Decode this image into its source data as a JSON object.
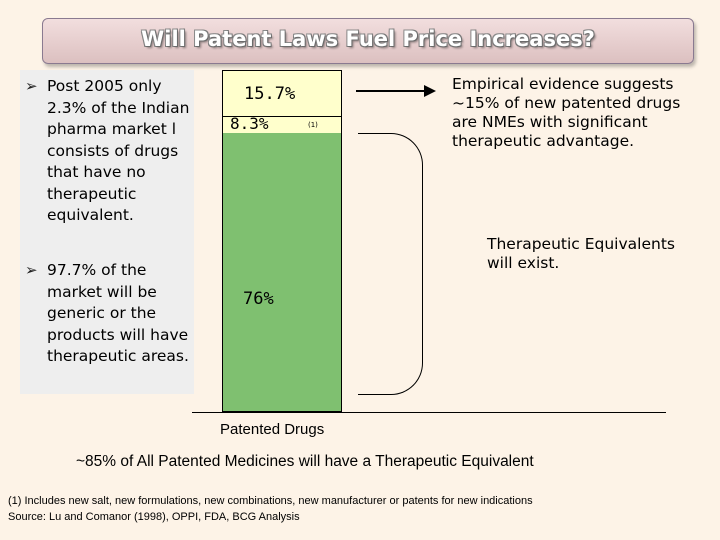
{
  "title": "Will Patent Laws Fuel Price Increases?",
  "left_bullets": [
    {
      "icon": "arrow-bullet-icon",
      "text": "Post 2005 only 2.3% of the Indian pharma market l consists of drugs that have no therapeutic equivalent."
    },
    {
      "icon": "arrow-bullet-icon",
      "text": "97.7% of the market will be generic or the products will have therapeutic areas."
    }
  ],
  "bar": {
    "segments": [
      {
        "label": "15.7%",
        "value": 15.7,
        "color": "#ffffcc"
      },
      {
        "label": "8.3%",
        "value": 8.3,
        "footnote": "(1)",
        "color": "#ffffcc"
      },
      {
        "label": "76%",
        "value": 76,
        "color": "#7fc070"
      }
    ],
    "axis_label": "Patented Drugs"
  },
  "right": {
    "top_text": "Empirical evidence suggests ~15% of new patented drugs are NMEs with significant therapeutic advantage.",
    "bottom_text": "Therapeutic Equivalents will exist."
  },
  "summary": "~85% of All Patented Medicines will have a Therapeutic Equivalent",
  "footnotes": {
    "note1": "(1) Includes new salt, new formulations, new combinations, new manufacturer or patents for new indications",
    "source": "Source:   Lu and Comanor (1998), OPPI, FDA, BCG Analysis"
  }
}
